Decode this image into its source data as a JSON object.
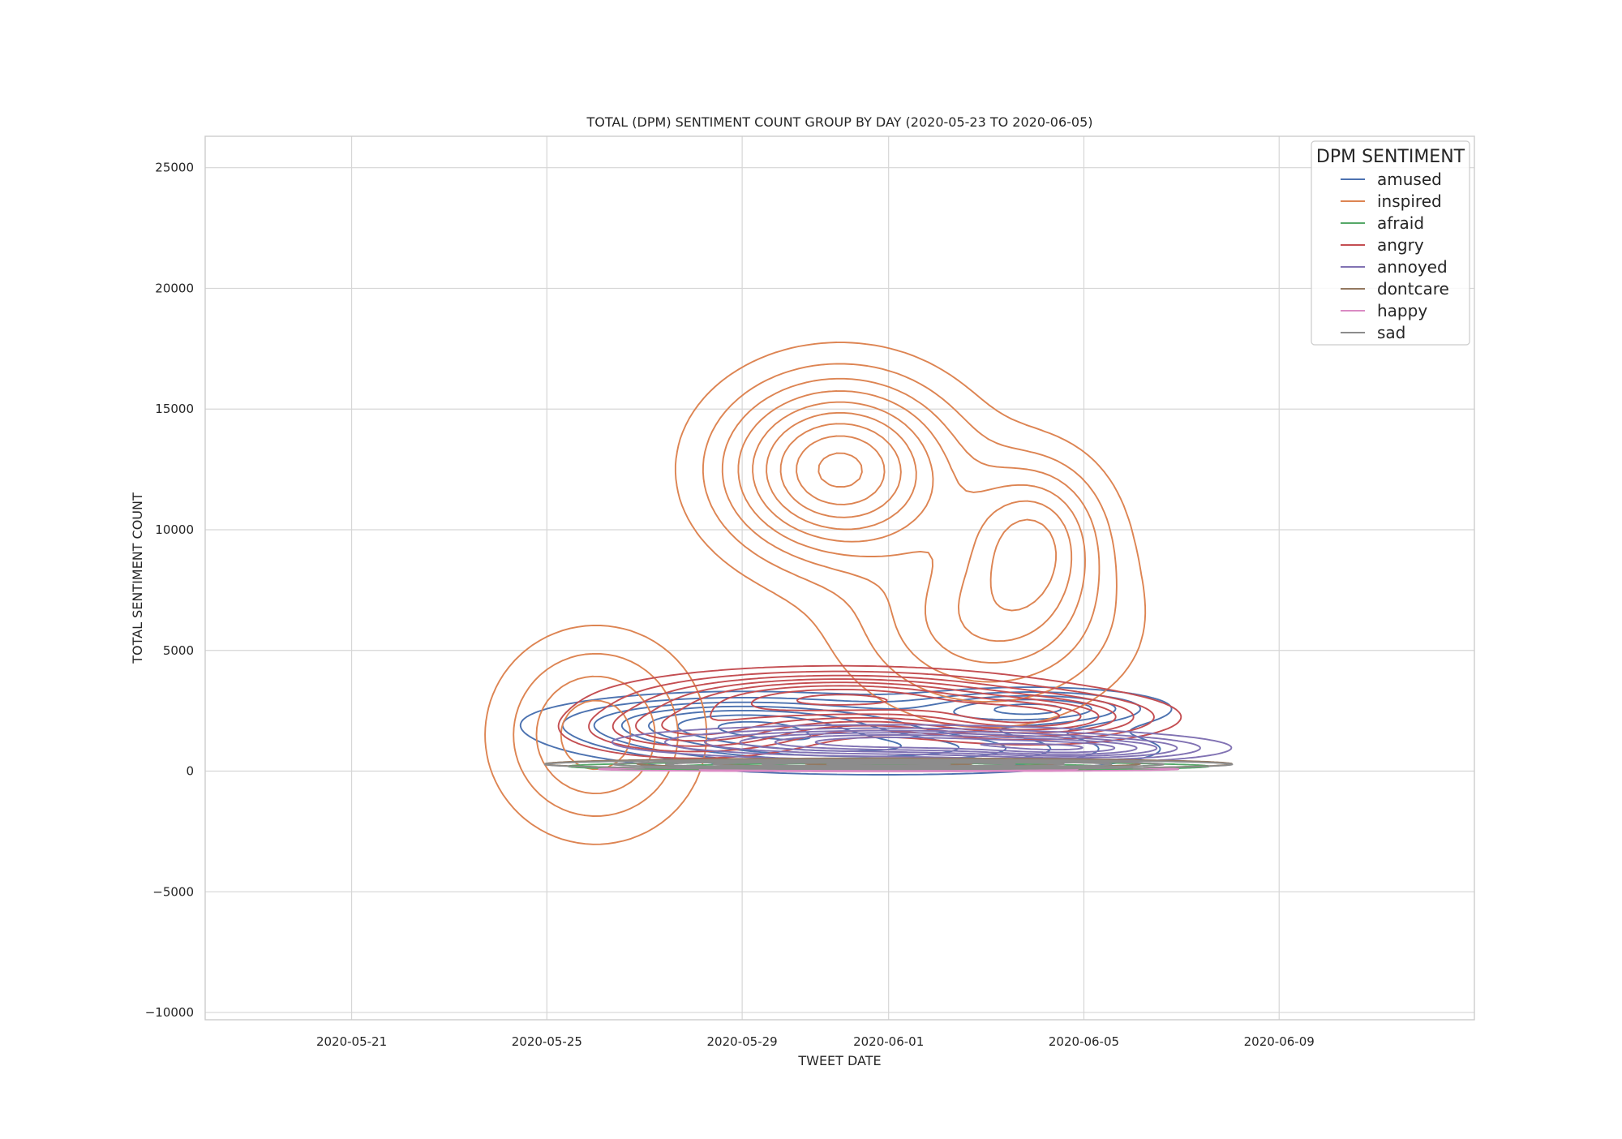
{
  "chart_data": {
    "type": "kde-contour",
    "title": "TOTAL (DPM) SENTIMENT COUNT GROUP BY DAY (2020-05-23 TO 2020-06-05)",
    "xlabel": "TWEET DATE",
    "ylabel": "TOTAL SENTIMENT COUNT",
    "xlim": [
      "2020-05-18",
      "2020-06-13"
    ],
    "ylim": [
      -10300,
      26300
    ],
    "x_ticks": [
      "2020-05-21",
      "2020-05-25",
      "2020-05-29",
      "2020-06-01",
      "2020-06-05",
      "2020-06-09"
    ],
    "y_ticks": [
      -10000,
      -5000,
      0,
      5000,
      10000,
      15000,
      20000,
      25000
    ],
    "grid": true,
    "legend": {
      "title": "DPM SENTIMENT",
      "placement": "top-right"
    },
    "series": [
      {
        "name": "amused",
        "color": "#4c72b0",
        "kde": {
          "levels": 7,
          "fill_fraction": 0.93,
          "extent": {
            "x": [
              "2020-05-22",
              "2020-06-08"
            ],
            "y": [
              -700,
              4000
            ]
          },
          "modes": [
            {
              "x": "2020-05-29",
              "y": 2000,
              "sx": 2.4,
              "sy": 700,
              "w": 1.0
            },
            {
              "x": "2020-06-04",
              "y": 2600,
              "sx": 1.6,
              "sy": 500,
              "w": 0.8
            },
            {
              "x": "2020-06-01",
              "y": 900,
              "sx": 3.2,
              "sy": 600,
              "w": 0.8
            }
          ]
        }
      },
      {
        "name": "inspired",
        "color": "#dd8452",
        "kde": {
          "levels": 9,
          "fill_fraction": 0.96,
          "extent": {
            "x": [
              "2020-05-21",
              "2020-06-08"
            ],
            "y": [
              -4400,
              19700
            ]
          },
          "modes": [
            {
              "x": "2020-05-31",
              "y": 12500,
              "sx": 1.6,
              "sy": 2500,
              "w": 1.0
            },
            {
              "x": "2020-06-04",
              "y": 9800,
              "sx": 1.0,
              "sy": 2200,
              "w": 0.55
            },
            {
              "x": "2020-05-26",
              "y": 1500,
              "sx": 1.3,
              "sy": 2600,
              "w": 0.5
            },
            {
              "x": "2020-06-03",
              "y": 6000,
              "sx": 1.8,
              "sy": 2400,
              "w": 0.5
            }
          ]
        }
      },
      {
        "name": "afraid",
        "color": "#55a868",
        "kde": {
          "levels": 3,
          "fill_fraction": 0.9,
          "extent": {
            "x": [
              "2020-05-24",
              "2020-06-08"
            ],
            "y": [
              0,
              400
            ]
          },
          "modes": [
            {
              "x": "2020-06-01",
              "y": 200,
              "sx": 4.2,
              "sy": 120,
              "w": 1.0
            }
          ]
        }
      },
      {
        "name": "angry",
        "color": "#c44e52",
        "kde": {
          "levels": 8,
          "fill_fraction": 0.93,
          "extent": {
            "x": [
              "2020-05-23",
              "2020-06-08"
            ],
            "y": [
              -300,
              4500
            ]
          },
          "modes": [
            {
              "x": "2020-05-31",
              "y": 3000,
              "sx": 2.5,
              "sy": 700,
              "w": 1.0
            },
            {
              "x": "2020-06-04",
              "y": 2200,
              "sx": 1.6,
              "sy": 600,
              "w": 0.8
            },
            {
              "x": "2020-05-28",
              "y": 1700,
              "sx": 1.6,
              "sy": 700,
              "w": 0.6
            }
          ]
        }
      },
      {
        "name": "annoyed",
        "color": "#8172b3",
        "kde": {
          "levels": 7,
          "fill_fraction": 0.93,
          "extent": {
            "x": [
              "2020-05-23",
              "2020-06-08"
            ],
            "y": [
              0,
              2200
            ]
          },
          "modes": [
            {
              "x": "2020-06-01",
              "y": 1200,
              "sx": 3.0,
              "sy": 380,
              "w": 1.0
            },
            {
              "x": "2020-06-05",
              "y": 900,
              "sx": 1.6,
              "sy": 300,
              "w": 0.7
            }
          ]
        }
      },
      {
        "name": "dontcare",
        "color": "#937860",
        "kde": {
          "levels": 4,
          "fill_fraction": 0.9,
          "extent": {
            "x": [
              "2020-05-24",
              "2020-06-08"
            ],
            "y": [
              0,
              500
            ]
          },
          "modes": [
            {
              "x": "2020-06-01",
              "y": 300,
              "sx": 4.2,
              "sy": 140,
              "w": 1.0
            }
          ]
        }
      },
      {
        "name": "happy",
        "color": "#da8bc3",
        "kde": {
          "levels": 3,
          "fill_fraction": 0.9,
          "extent": {
            "x": [
              "2020-05-25",
              "2020-06-07"
            ],
            "y": [
              0,
              200
            ]
          },
          "modes": [
            {
              "x": "2020-06-01",
              "y": 80,
              "sx": 3.8,
              "sy": 60,
              "w": 1.0
            }
          ]
        }
      },
      {
        "name": "sad",
        "color": "#8c8c8c",
        "kde": {
          "levels": 6,
          "fill_fraction": 0.92,
          "extent": {
            "x": [
              "2020-05-24",
              "2020-06-08"
            ],
            "y": [
              0,
              500
            ]
          },
          "modes": [
            {
              "x": "2020-06-01",
              "y": 280,
              "sx": 3.8,
              "sy": 110,
              "w": 1.0
            }
          ]
        }
      }
    ]
  }
}
